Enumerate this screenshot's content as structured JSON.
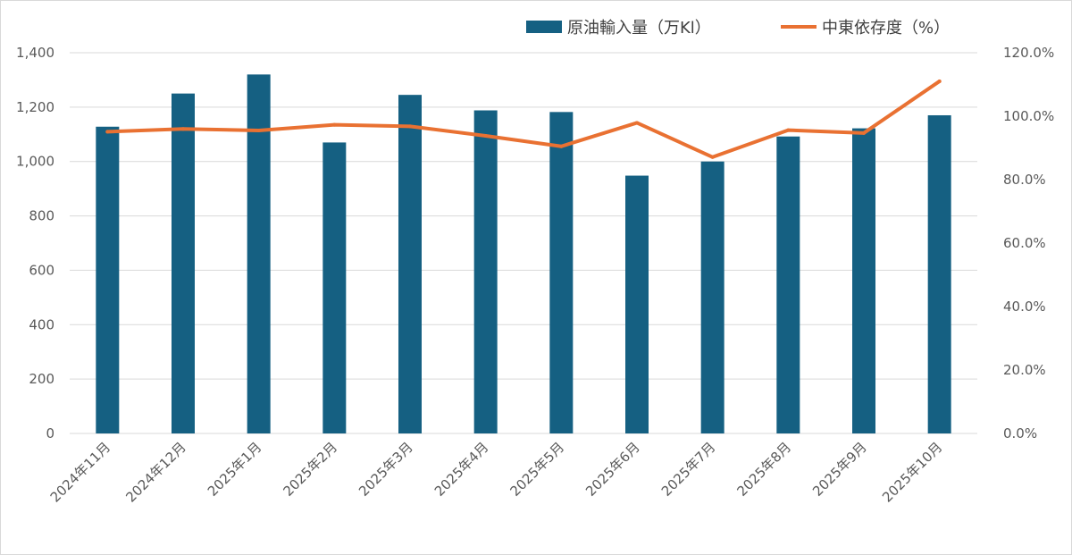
{
  "chart_data": {
    "type": "bar",
    "categories": [
      "2024年11月",
      "2024年12月",
      "2025年1月",
      "2025年2月",
      "2025年3月",
      "2025年4月",
      "2025年5月",
      "2025年6月",
      "2025年7月",
      "2025年8月",
      "2025年9月",
      "2025年10月"
    ],
    "series": [
      {
        "name": "原油輸入量（万Kl）",
        "type": "bar",
        "axis": "left",
        "color": "#156082",
        "values": [
          1128,
          1250,
          1320,
          1070,
          1245,
          1188,
          1182,
          948,
          1000,
          1092,
          1122,
          1170
        ]
      },
      {
        "name": "中東依存度（%）",
        "type": "line",
        "axis": "right",
        "color": "#E97132",
        "values": [
          95.1,
          96.0,
          95.5,
          97.3,
          96.8,
          93.8,
          90.5,
          97.9,
          87.1,
          95.6,
          94.7,
          111.0
        ]
      }
    ],
    "y_left": {
      "ticks": [
        "0",
        "200",
        "400",
        "600",
        "800",
        "1,000",
        "1,200",
        "1,400"
      ],
      "ylim": [
        0,
        1400
      ]
    },
    "y_right": {
      "ticks": [
        "0.0%",
        "20.0%",
        "40.0%",
        "60.0%",
        "80.0%",
        "100.0%",
        "120.0%"
      ],
      "ylim": [
        0,
        120
      ]
    },
    "grid": true,
    "legend": "top-right"
  }
}
